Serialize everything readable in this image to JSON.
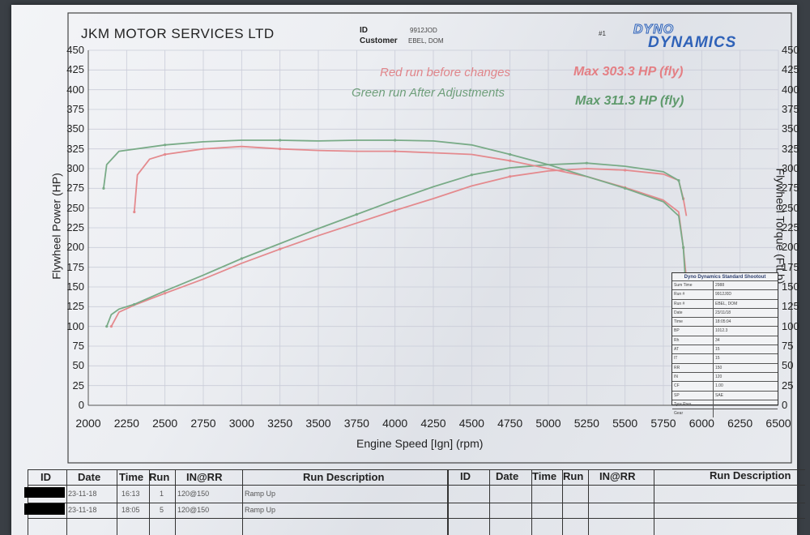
{
  "header": {
    "company": "JKM MOTOR SERVICES LTD",
    "id_label": "ID",
    "id_value": "9912JOD",
    "customer_label": "Customer",
    "customer_value": "EBEL, DOM",
    "run_marker": "#1",
    "logo_line1": "DYNO",
    "logo_line2": "DYNAMICS"
  },
  "annotations": {
    "red_note": "Red run before changes",
    "green_note": "Green run After Adjustments",
    "red_max": "Max 303.3 HP (fly)",
    "green_max": "Max 311.3 HP (fly)"
  },
  "colors": {
    "red": "#e48a8e",
    "green": "#79ab87",
    "red_text": "#e0858a",
    "green_text": "#6f9f7b",
    "max_red": "#e47f84",
    "max_green": "#5f9a6c",
    "grid": "#c9ccd8",
    "logo_blue": "#2f62b8"
  },
  "chart_data": {
    "type": "line",
    "xlabel": "Engine Speed [Ign] (rpm)",
    "ylabel": "Flywheel Power (HP)",
    "y2label": "Flywheel Torque (FtLb)",
    "xlim": [
      2000,
      6500
    ],
    "ylim": [
      0,
      450
    ],
    "y2lim": [
      0,
      450
    ],
    "x_ticks": [
      "2000",
      "2250",
      "2500",
      "2750",
      "3000",
      "3250",
      "3500",
      "3750",
      "4000",
      "4250",
      "4500",
      "4750",
      "5000",
      "5250",
      "5500",
      "5750",
      "6000",
      "6250",
      "6500"
    ],
    "y_ticks": [
      "0",
      "25",
      "50",
      "75",
      "100",
      "125",
      "150",
      "175",
      "200",
      "225",
      "250",
      "275",
      "300",
      "325",
      "350",
      "375",
      "400",
      "425",
      "450"
    ],
    "y2_ticks": [
      "0",
      "25",
      "50",
      "75",
      "100",
      "125",
      "150",
      "175",
      "200",
      "225",
      "250",
      "275",
      "300",
      "325",
      "350",
      "375",
      "400",
      "425",
      "450"
    ],
    "grid": true,
    "series": [
      {
        "name": "Red run before changes",
        "color_key": "red",
        "axis": "left",
        "points": [
          [
            2150,
            100
          ],
          [
            2200,
            118
          ],
          [
            2300,
            127
          ],
          [
            2500,
            142
          ],
          [
            2750,
            160
          ],
          [
            3000,
            180
          ],
          [
            3250,
            198
          ],
          [
            3500,
            215
          ],
          [
            3750,
            231
          ],
          [
            4000,
            247
          ],
          [
            4250,
            262
          ],
          [
            4500,
            278
          ],
          [
            4750,
            290
          ],
          [
            5000,
            297
          ],
          [
            5250,
            300
          ],
          [
            5500,
            298
          ],
          [
            5750,
            293
          ],
          [
            5850,
            285
          ],
          [
            5880,
            262
          ],
          [
            5900,
            240
          ]
        ]
      },
      {
        "name": "Green run After Adjustments",
        "color_key": "green",
        "axis": "left",
        "points": [
          [
            2120,
            100
          ],
          [
            2150,
            115
          ],
          [
            2200,
            122
          ],
          [
            2300,
            128
          ],
          [
            2500,
            145
          ],
          [
            2750,
            165
          ],
          [
            3000,
            186
          ],
          [
            3250,
            205
          ],
          [
            3500,
            224
          ],
          [
            3750,
            242
          ],
          [
            4000,
            260
          ],
          [
            4250,
            277
          ],
          [
            4500,
            292
          ],
          [
            4750,
            301
          ],
          [
            5000,
            305
          ],
          [
            5250,
            307
          ],
          [
            5500,
            303
          ],
          [
            5750,
            296
          ],
          [
            5850,
            285
          ],
          [
            5880,
            260
          ]
        ]
      },
      {
        "name": "Red torque",
        "color_key": "red",
        "axis": "right",
        "points": [
          [
            2300,
            245
          ],
          [
            2320,
            292
          ],
          [
            2400,
            312
          ],
          [
            2500,
            318
          ],
          [
            2750,
            325
          ],
          [
            3000,
            328
          ],
          [
            3250,
            325
          ],
          [
            3500,
            323
          ],
          [
            3750,
            322
          ],
          [
            4000,
            322
          ],
          [
            4250,
            320
          ],
          [
            4500,
            318
          ],
          [
            4750,
            310
          ],
          [
            5000,
            300
          ],
          [
            5250,
            290
          ],
          [
            5500,
            276
          ],
          [
            5750,
            260
          ],
          [
            5850,
            245
          ],
          [
            5880,
            200
          ],
          [
            5900,
            160
          ]
        ]
      },
      {
        "name": "Green torque",
        "color_key": "green",
        "axis": "right",
        "points": [
          [
            2100,
            275
          ],
          [
            2120,
            305
          ],
          [
            2200,
            322
          ],
          [
            2500,
            330
          ],
          [
            2750,
            334
          ],
          [
            3000,
            336
          ],
          [
            3250,
            336
          ],
          [
            3500,
            335
          ],
          [
            3750,
            336
          ],
          [
            4000,
            336
          ],
          [
            4250,
            335
          ],
          [
            4500,
            330
          ],
          [
            4750,
            318
          ],
          [
            5000,
            305
          ],
          [
            5250,
            290
          ],
          [
            5500,
            275
          ],
          [
            5750,
            258
          ],
          [
            5850,
            240
          ],
          [
            5880,
            200
          ],
          [
            5900,
            140
          ]
        ]
      }
    ]
  },
  "mini_table": {
    "title": "Dyno Dynamics Standard Shootout",
    "rows": [
      {
        "k": "Sum Time",
        "v": "2988"
      },
      {
        "k": "Run #",
        "v": "9912J0D"
      },
      {
        "k": "Run #",
        "v": "EBEL, DOM"
      },
      {
        "k": "Date",
        "v": "23/11/18"
      },
      {
        "k": "Time",
        "v": "18:05:04"
      },
      {
        "k": "BP",
        "v": "1012.3"
      },
      {
        "k": "Rh",
        "v": "34"
      },
      {
        "k": "AT",
        "v": "15"
      },
      {
        "k": "IT",
        "v": "15"
      },
      {
        "k": "RR",
        "v": "150"
      },
      {
        "k": "IN",
        "v": "120"
      },
      {
        "k": "CF",
        "v": "1.00"
      },
      {
        "k": "SP",
        "v": "SAE"
      },
      {
        "k": "Tyre Pres",
        "v": ""
      },
      {
        "k": "Gear",
        "v": ""
      }
    ]
  },
  "bottom_table": {
    "headers_left": {
      "id": "ID",
      "date": "Date",
      "time": "Time",
      "run": "Run",
      "inrr": "IN@RR",
      "desc": "Run Description"
    },
    "headers_right": {
      "id": "ID",
      "date": "Date",
      "time": "Time",
      "run": "Run",
      "inrr": "IN@RR",
      "desc": "Run Description"
    },
    "rows": [
      {
        "date": "23-11-18",
        "time": "16:13",
        "run": "1",
        "inrr": "120@150",
        "desc": "Ramp Up"
      },
      {
        "date": "23-11-18",
        "time": "18:05",
        "run": "5",
        "inrr": "120@150",
        "desc": "Ramp Up"
      }
    ]
  }
}
